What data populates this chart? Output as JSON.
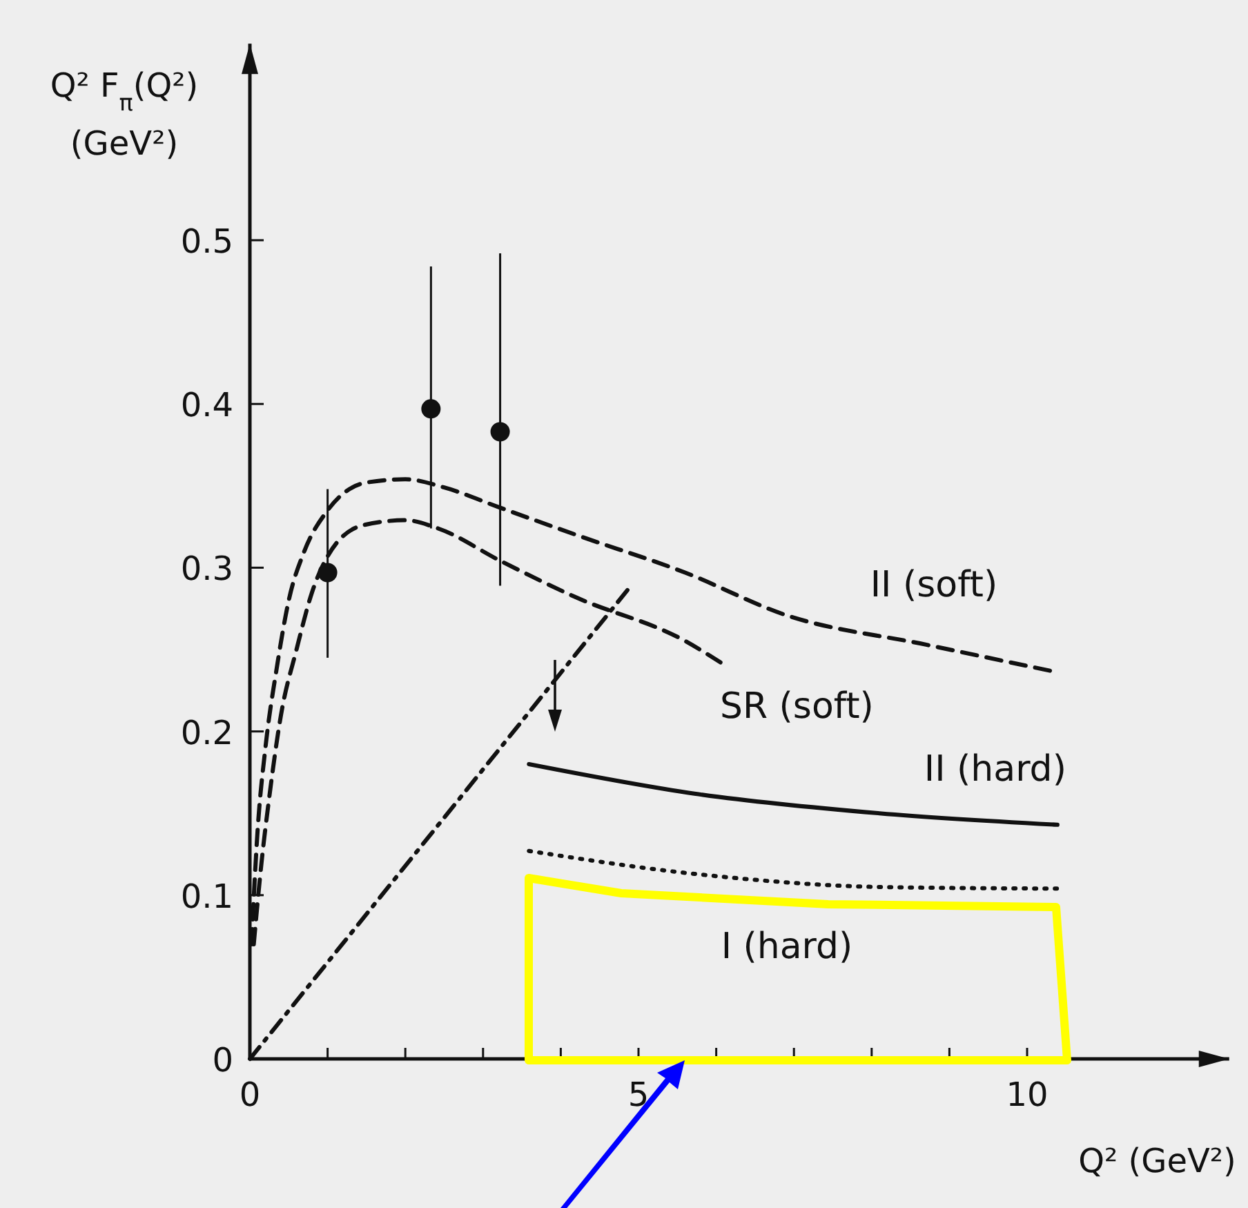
{
  "chart_data": {
    "type": "line",
    "xlabel": "Q² (GeV²)",
    "ylabel": "Q² F$_{π}$(Q²)\n(GeV²)",
    "xlim": [
      0,
      12.6
    ],
    "ylim": [
      0,
      0.62
    ],
    "xticks": [
      0,
      {
        "value": 1,
        "label": null
      },
      {
        "value": 2,
        "label": null
      },
      {
        "value": 3,
        "label": null
      },
      {
        "value": 4,
        "label": null
      },
      5,
      {
        "value": 6,
        "label": null
      },
      {
        "value": 7,
        "label": null
      },
      {
        "value": 8,
        "label": null
      },
      {
        "value": 9,
        "label": null
      },
      10
    ],
    "yticks": [
      0,
      0.1,
      0.2,
      0.3,
      0.4,
      0.5
    ],
    "series": [
      {
        "name": "II (soft)",
        "color": "#111111",
        "line_style": "dashed",
        "x": [
          0.02,
          0.1,
          0.2,
          0.35,
          0.5,
          0.7,
          1.0,
          1.5,
          2.0,
          2.5,
          3.2,
          4.2,
          5.6,
          6.9,
          8.7,
          10.4
        ],
        "values": [
          0.07,
          0.14,
          0.19,
          0.24,
          0.28,
          0.31,
          0.335,
          0.352,
          0.354,
          0.349,
          0.337,
          0.32,
          0.297,
          0.271,
          0.253,
          0.236
        ]
      },
      {
        "name": "SR (soft)",
        "color": "#111111",
        "line_style": "dashed",
        "x": [
          0.05,
          0.15,
          0.25,
          0.4,
          0.6,
          0.8,
          1.0,
          1.46,
          2.0,
          2.42,
          3.23,
          4.19,
          5.61,
          6.06
        ],
        "values": [
          0.07,
          0.12,
          0.16,
          0.21,
          0.25,
          0.285,
          0.307,
          0.326,
          0.329,
          0.324,
          0.304,
          0.282,
          0.255,
          0.242
        ]
      },
      {
        "color": "#111111",
        "line_style": "dashdot",
        "x": [
          0,
          4.92
        ],
        "values": [
          0,
          0.29
        ]
      },
      {
        "name": "II (hard)",
        "color": "#111111",
        "line_style": "solid",
        "x": [
          3.59,
          5.72,
          8.1,
          10.39
        ],
        "values": [
          0.18,
          0.162,
          0.15,
          0.143
        ]
      },
      {
        "color": "#111111",
        "line_style": "dotted",
        "x": [
          3.59,
          5.72,
          8.1,
          10.39
        ],
        "values": [
          0.127,
          0.113,
          0.105,
          0.104
        ]
      },
      {
        "type": "scatter",
        "color": "#111111",
        "marker": "circle",
        "x": [
          1.0,
          2.33,
          3.22
        ],
        "values": [
          0.297,
          0.397,
          0.383
        ],
        "errors": [
          [
            0.245,
            0.348
          ],
          [
            0.324,
            0.484
          ],
          [
            0.289,
            0.492
          ]
        ]
      }
    ],
    "annotations": [
      "I (hard)"
    ]
  }
}
